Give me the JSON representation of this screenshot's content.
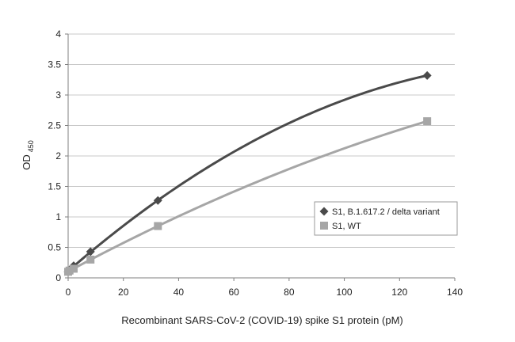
{
  "chart_data": {
    "type": "scatter",
    "title": "",
    "xlabel": "Recombinant SARS-CoV-2 (COVID-19) spike S1 protein (pM)",
    "ylabel": "OD",
    "ylabel_subscript": "450",
    "xlim": [
      0,
      140
    ],
    "ylim": [
      0,
      4
    ],
    "xticks": [
      "0",
      "20",
      "40",
      "60",
      "80",
      "100",
      "120",
      "140"
    ],
    "yticks": [
      "0",
      "0.5",
      "1",
      "1.5",
      "2",
      "2.5",
      "3",
      "3.5",
      "4"
    ],
    "grid": "horizontal",
    "legend_position": "right",
    "series": [
      {
        "name": "S1, B.1.617.2 / delta variant",
        "marker": "diamond",
        "color": "#4a4a4a",
        "x": [
          0,
          0.5,
          2,
          8.1,
          32.5,
          130
        ],
        "y": [
          0.1,
          0.13,
          0.2,
          0.43,
          1.27,
          3.32
        ],
        "trendline": "polynomial"
      },
      {
        "name": "S1, WT",
        "marker": "square",
        "color": "#a6a6a6",
        "x": [
          0,
          0.5,
          2,
          8.1,
          32.5,
          130
        ],
        "y": [
          0.1,
          0.12,
          0.15,
          0.3,
          0.85,
          2.57
        ],
        "trendline": "polynomial"
      }
    ]
  }
}
